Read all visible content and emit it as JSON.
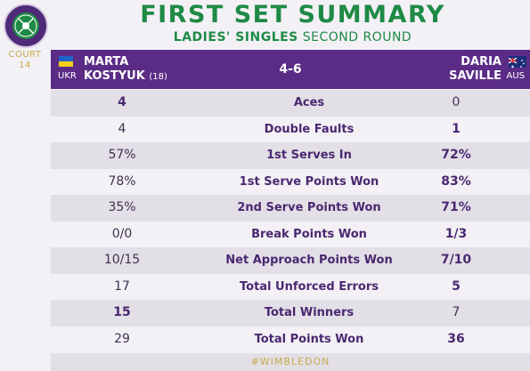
{
  "court": {
    "line1": "COURT",
    "line2": "14"
  },
  "title": "FIRST SET SUMMARY",
  "subtitle": {
    "bold": "LADIES' SINGLES",
    "rest": "SECOND ROUND"
  },
  "score": "4-6",
  "player1": {
    "first": "MARTA",
    "last": "KOSTYUK",
    "seed": "(18)",
    "code": "UKR"
  },
  "player2": {
    "first": "DARIA",
    "last": "SAVILLE",
    "code": "AUS"
  },
  "stats": [
    {
      "label": "Aces",
      "left": "4",
      "right": "0",
      "left_bold": true,
      "right_bold": false
    },
    {
      "label": "Double Faults",
      "left": "4",
      "right": "1",
      "left_bold": false,
      "right_bold": true
    },
    {
      "label": "1st Serves In",
      "left": "57%",
      "right": "72%",
      "left_bold": false,
      "right_bold": true
    },
    {
      "label": "1st Serve Points Won",
      "left": "78%",
      "right": "83%",
      "left_bold": false,
      "right_bold": true
    },
    {
      "label": "2nd Serve Points Won",
      "left": "35%",
      "right": "71%",
      "left_bold": false,
      "right_bold": true
    },
    {
      "label": "Break Points Won",
      "left": "0/0",
      "right": "1/3",
      "left_bold": false,
      "right_bold": true
    },
    {
      "label": "Net Approach Points Won",
      "left": "10/15",
      "right": "7/10",
      "left_bold": false,
      "right_bold": true
    },
    {
      "label": "Total Unforced Errors",
      "left": "17",
      "right": "5",
      "left_bold": false,
      "right_bold": true
    },
    {
      "label": "Total Winners",
      "left": "15",
      "right": "7",
      "left_bold": true,
      "right_bold": false
    },
    {
      "label": "Total Points Won",
      "left": "29",
      "right": "36",
      "left_bold": false,
      "right_bold": true
    }
  ],
  "hashtag": "#WIMBLEDON",
  "colors": {
    "purple": "#5b2c86",
    "green": "#1e8a45",
    "gold": "#c9a94a"
  }
}
